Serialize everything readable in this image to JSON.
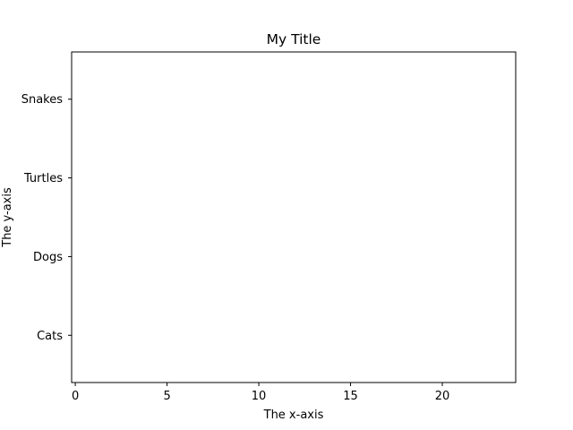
{
  "chart_data": {
    "type": "bar",
    "orientation": "horizontal",
    "title": "My Title",
    "xlabel": "The x-axis",
    "ylabel": "The y-axis",
    "categories": [
      "Cats",
      "Dogs",
      "Turtles",
      "Snakes"
    ],
    "values": [
      null,
      null,
      null,
      null
    ],
    "xlim": [
      -0.2,
      24
    ],
    "xticks": [
      0,
      5,
      10,
      15,
      20
    ],
    "grid": false,
    "colors": {
      "axes": "#000000",
      "background": "#ffffff"
    }
  }
}
